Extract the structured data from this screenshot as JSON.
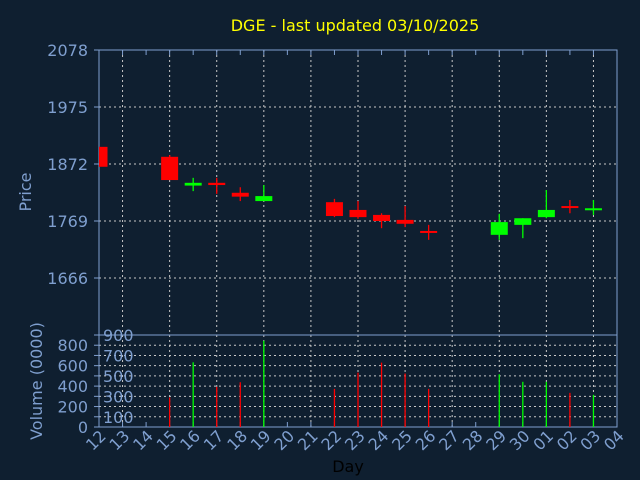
{
  "colors": {
    "background": "#0f1f30",
    "axis": "#7f9fcf",
    "grid": "#c8c8c8",
    "title": "#ffff00",
    "up": "#00ff00",
    "down": "#ff0000",
    "xlabel": "#000000"
  },
  "chart_data": [
    {
      "type": "candlestick",
      "title": "DGE - last updated 03/10/2025",
      "ylabel": "Price",
      "ylim": [
        1563,
        2078
      ],
      "yticks": [
        1666,
        1769,
        1872,
        1975,
        2078
      ],
      "grid": true,
      "categories": [
        "12",
        "13",
        "14",
        "15",
        "16",
        "17",
        "18",
        "19",
        "20",
        "21",
        "22",
        "23",
        "24",
        "25",
        "26",
        "27",
        "28",
        "29",
        "30",
        "01",
        "02",
        "03",
        "04"
      ],
      "candles": [
        {
          "day": "12",
          "open": 1903,
          "close": 1867,
          "high": 1903,
          "low": 1867
        },
        {
          "day": "15",
          "open": 1885,
          "close": 1843,
          "high": 1888,
          "low": 1843
        },
        {
          "day": "16",
          "open": 1833,
          "close": 1838,
          "high": 1847,
          "low": 1823
        },
        {
          "day": "17",
          "open": 1838,
          "close": 1834,
          "high": 1847,
          "low": 1818
        },
        {
          "day": "18",
          "open": 1820,
          "close": 1813,
          "high": 1830,
          "low": 1805
        },
        {
          "day": "19",
          "open": 1805,
          "close": 1814,
          "high": 1834,
          "low": 1805
        },
        {
          "day": "22",
          "open": 1803,
          "close": 1778,
          "high": 1809,
          "low": 1776
        },
        {
          "day": "23",
          "open": 1789,
          "close": 1776,
          "high": 1805,
          "low": 1773
        },
        {
          "day": "24",
          "open": 1780,
          "close": 1769,
          "high": 1783,
          "low": 1756
        },
        {
          "day": "25",
          "open": 1771,
          "close": 1764,
          "high": 1796,
          "low": 1758
        },
        {
          "day": "26",
          "open": 1751,
          "close": 1749,
          "high": 1762,
          "low": 1735
        },
        {
          "day": "29",
          "open": 1744,
          "close": 1767,
          "high": 1782,
          "low": 1735
        },
        {
          "day": "30",
          "open": 1762,
          "close": 1774,
          "high": 1774,
          "low": 1738
        },
        {
          "day": "01",
          "open": 1776,
          "close": 1789,
          "high": 1825,
          "low": 1774
        },
        {
          "day": "02",
          "open": 1796,
          "close": 1794,
          "high": 1807,
          "low": 1783
        },
        {
          "day": "03",
          "open": 1789,
          "close": 1792,
          "high": 1807,
          "low": 1780
        }
      ]
    },
    {
      "type": "bar",
      "ylabel": "Volume (0000)",
      "xlabel": "Day",
      "ylim": [
        0,
        900
      ],
      "yticks": [
        0,
        100,
        200,
        300,
        400,
        500,
        600,
        700,
        800,
        900
      ],
      "grid": true,
      "categories": [
        "12",
        "13",
        "14",
        "15",
        "16",
        "17",
        "18",
        "19",
        "20",
        "21",
        "22",
        "23",
        "24",
        "25",
        "26",
        "27",
        "28",
        "29",
        "30",
        "01",
        "02",
        "03",
        "04"
      ],
      "bars": [
        {
          "day": "15",
          "value": 289,
          "direction": "down"
        },
        {
          "day": "16",
          "value": 633,
          "direction": "up"
        },
        {
          "day": "17",
          "value": 393,
          "direction": "down"
        },
        {
          "day": "18",
          "value": 438,
          "direction": "down"
        },
        {
          "day": "19",
          "value": 844,
          "direction": "up"
        },
        {
          "day": "22",
          "value": 373,
          "direction": "down"
        },
        {
          "day": "23",
          "value": 532,
          "direction": "down"
        },
        {
          "day": "24",
          "value": 630,
          "direction": "down"
        },
        {
          "day": "25",
          "value": 523,
          "direction": "down"
        },
        {
          "day": "26",
          "value": 373,
          "direction": "down"
        },
        {
          "day": "29",
          "value": 516,
          "direction": "up"
        },
        {
          "day": "30",
          "value": 442,
          "direction": "up"
        },
        {
          "day": "01",
          "value": 442,
          "direction": "up"
        },
        {
          "day": "02",
          "value": 334,
          "direction": "down"
        },
        {
          "day": "03",
          "value": 315,
          "direction": "up"
        }
      ]
    }
  ]
}
